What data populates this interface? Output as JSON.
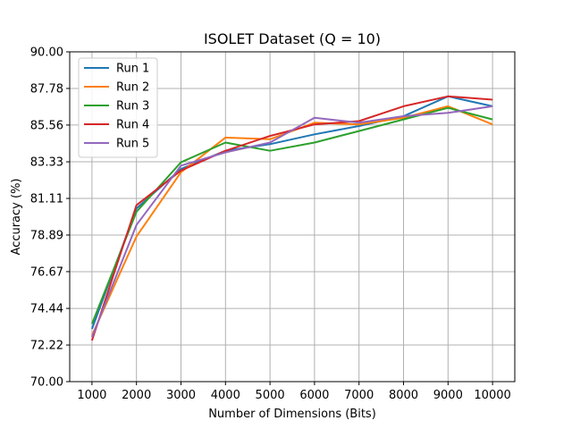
{
  "chart_data": {
    "type": "line",
    "title": "ISOLET Dataset (Q = 10)",
    "xlabel": "Number of Dimensions (Bits)",
    "ylabel": "Accuracy (%)",
    "x": [
      1000,
      2000,
      3000,
      4000,
      5000,
      6000,
      7000,
      8000,
      9000,
      10000
    ],
    "xticks": [
      "1000",
      "2000",
      "3000",
      "4000",
      "5000",
      "6000",
      "7000",
      "8000",
      "9000",
      "10000"
    ],
    "yticks": [
      "70.00",
      "72.22",
      "74.44",
      "76.67",
      "78.89",
      "81.11",
      "83.33",
      "85.56",
      "87.78",
      "90.00"
    ],
    "ylim": [
      70.0,
      90.0
    ],
    "xlim": [
      500,
      10500
    ],
    "grid": true,
    "legend_position": "top-left",
    "series": [
      {
        "name": "Run 1",
        "color": "#1f77b4",
        "values": [
          73.2,
          80.5,
          82.9,
          84.0,
          84.4,
          85.0,
          85.5,
          86.1,
          87.3,
          86.7
        ]
      },
      {
        "name": "Run 2",
        "color": "#ff7f0e",
        "values": [
          72.8,
          78.8,
          82.7,
          84.8,
          84.7,
          85.7,
          85.6,
          86.0,
          86.7,
          85.6
        ]
      },
      {
        "name": "Run 3",
        "color": "#2ca02c",
        "values": [
          73.5,
          80.3,
          83.3,
          84.5,
          84.0,
          84.5,
          85.2,
          85.9,
          86.6,
          85.9
        ]
      },
      {
        "name": "Run 4",
        "color": "#d62728",
        "values": [
          72.5,
          80.7,
          82.8,
          84.0,
          84.9,
          85.6,
          85.8,
          86.7,
          87.3,
          87.1
        ]
      },
      {
        "name": "Run 5",
        "color": "#9467bd",
        "values": [
          72.7,
          79.5,
          83.1,
          83.9,
          84.5,
          86.0,
          85.7,
          86.1,
          86.3,
          86.7
        ]
      }
    ]
  }
}
